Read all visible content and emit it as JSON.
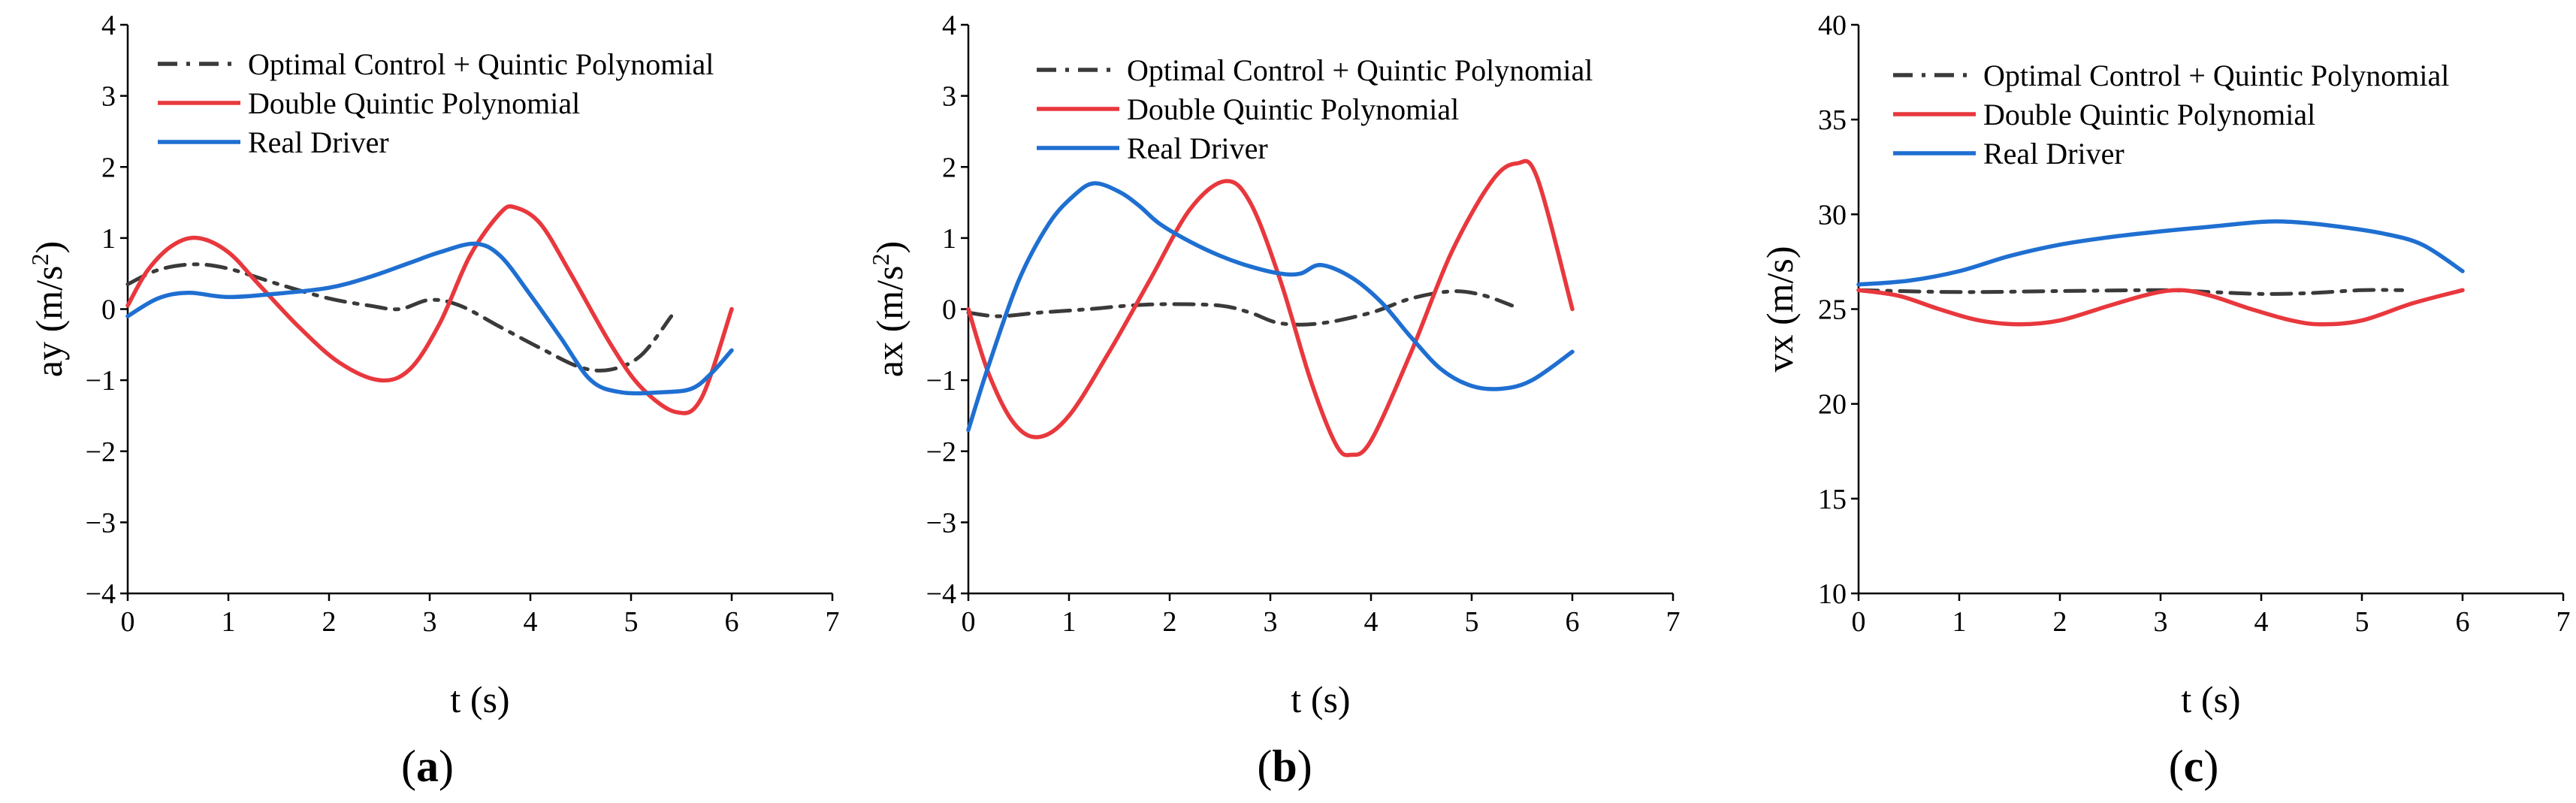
{
  "colors": {
    "optimal": "#3a3a3a",
    "double": "#e8383d",
    "real": "#1f6fd1"
  },
  "chart_data": [
    {
      "type": "line",
      "panel_label": "a",
      "xlabel": "t (s)",
      "ylabel": {
        "base": "ay (m/s",
        "sup": "2",
        "end": ")"
      },
      "xlim": [
        0,
        7
      ],
      "ylim": [
        -4,
        4
      ],
      "xticks": [
        "0",
        "1",
        "2",
        "3",
        "4",
        "5",
        "6",
        "7"
      ],
      "yticks": [
        "−4",
        "−3",
        "−2",
        "−1",
        "0",
        "1",
        "2",
        "3",
        "4"
      ],
      "legend_position": "top-left",
      "series": [
        {
          "name": "Optimal Control + Quintic Polynomial",
          "color_key": "optimal",
          "dash": "dashdot",
          "points": [
            [
              0,
              0.35
            ],
            [
              0.3,
              0.55
            ],
            [
              0.65,
              0.63
            ],
            [
              1.0,
              0.57
            ],
            [
              1.5,
              0.35
            ],
            [
              2.0,
              0.15
            ],
            [
              2.4,
              0.05
            ],
            [
              2.7,
              0.0
            ],
            [
              3.0,
              0.13
            ],
            [
              3.3,
              0.05
            ],
            [
              3.7,
              -0.25
            ],
            [
              4.1,
              -0.55
            ],
            [
              4.5,
              -0.82
            ],
            [
              4.8,
              -0.85
            ],
            [
              5.1,
              -0.65
            ],
            [
              5.4,
              -0.1
            ]
          ]
        },
        {
          "name": "Double Quintic Polynomial",
          "color_key": "double",
          "dash": "solid",
          "points": [
            [
              0,
              0.05
            ],
            [
              0.2,
              0.55
            ],
            [
              0.45,
              0.9
            ],
            [
              0.7,
              1.0
            ],
            [
              1.0,
              0.8
            ],
            [
              1.3,
              0.35
            ],
            [
              1.7,
              -0.25
            ],
            [
              2.1,
              -0.75
            ],
            [
              2.5,
              -1.0
            ],
            [
              2.8,
              -0.85
            ],
            [
              3.1,
              -0.2
            ],
            [
              3.4,
              0.75
            ],
            [
              3.7,
              1.35
            ],
            [
              3.85,
              1.43
            ],
            [
              4.1,
              1.2
            ],
            [
              4.4,
              0.5
            ],
            [
              4.8,
              -0.5
            ],
            [
              5.1,
              -1.1
            ],
            [
              5.45,
              -1.45
            ],
            [
              5.7,
              -1.25
            ],
            [
              6.0,
              0.0
            ]
          ]
        },
        {
          "name": "Real Driver",
          "color_key": "real",
          "dash": "solid",
          "points": [
            [
              0,
              -0.1
            ],
            [
              0.3,
              0.15
            ],
            [
              0.6,
              0.23
            ],
            [
              1.0,
              0.17
            ],
            [
              1.5,
              0.22
            ],
            [
              2.0,
              0.3
            ],
            [
              2.4,
              0.45
            ],
            [
              2.8,
              0.65
            ],
            [
              3.1,
              0.8
            ],
            [
              3.45,
              0.92
            ],
            [
              3.7,
              0.75
            ],
            [
              4.0,
              0.2
            ],
            [
              4.3,
              -0.4
            ],
            [
              4.6,
              -1.0
            ],
            [
              4.9,
              -1.17
            ],
            [
              5.3,
              -1.17
            ],
            [
              5.6,
              -1.12
            ],
            [
              5.8,
              -0.9
            ],
            [
              6.0,
              -0.58
            ]
          ]
        }
      ]
    },
    {
      "type": "line",
      "panel_label": "b",
      "xlabel": "t (s)",
      "ylabel": {
        "base": "ax (m/s",
        "sup": "2",
        "end": ")"
      },
      "xlim": [
        0,
        7
      ],
      "ylim": [
        -4,
        4
      ],
      "xticks": [
        "0",
        "1",
        "2",
        "3",
        "4",
        "5",
        "6",
        "7"
      ],
      "yticks": [
        "−4",
        "−3",
        "−2",
        "−1",
        "0",
        "1",
        "2",
        "3",
        "4"
      ],
      "legend_position": "top-center",
      "series": [
        {
          "name": "Optimal Control + Quintic Polynomial",
          "color_key": "optimal",
          "dash": "dashdot",
          "points": [
            [
              0,
              -0.05
            ],
            [
              0.3,
              -0.1
            ],
            [
              0.7,
              -0.05
            ],
            [
              1.2,
              0.0
            ],
            [
              1.6,
              0.05
            ],
            [
              2.0,
              0.07
            ],
            [
              2.5,
              0.05
            ],
            [
              2.8,
              -0.05
            ],
            [
              3.1,
              -0.2
            ],
            [
              3.5,
              -0.2
            ],
            [
              4.0,
              -0.05
            ],
            [
              4.4,
              0.15
            ],
            [
              4.8,
              0.25
            ],
            [
              5.1,
              0.2
            ],
            [
              5.4,
              0.05
            ]
          ]
        },
        {
          "name": "Double Quintic Polynomial",
          "color_key": "double",
          "dash": "solid",
          "points": [
            [
              0,
              0.0
            ],
            [
              0.2,
              -0.9
            ],
            [
              0.45,
              -1.6
            ],
            [
              0.7,
              -1.8
            ],
            [
              1.0,
              -1.5
            ],
            [
              1.4,
              -0.6
            ],
            [
              1.8,
              0.4
            ],
            [
              2.2,
              1.4
            ],
            [
              2.55,
              1.8
            ],
            [
              2.8,
              1.5
            ],
            [
              3.1,
              0.4
            ],
            [
              3.4,
              -1.0
            ],
            [
              3.65,
              -1.9
            ],
            [
              3.8,
              -2.05
            ],
            [
              4.0,
              -1.85
            ],
            [
              4.4,
              -0.6
            ],
            [
              4.8,
              0.8
            ],
            [
              5.2,
              1.8
            ],
            [
              5.45,
              2.05
            ],
            [
              5.65,
              1.85
            ],
            [
              6.0,
              0.0
            ]
          ]
        },
        {
          "name": "Real Driver",
          "color_key": "real",
          "dash": "solid",
          "points": [
            [
              0,
              -1.7
            ],
            [
              0.2,
              -0.8
            ],
            [
              0.5,
              0.4
            ],
            [
              0.8,
              1.2
            ],
            [
              1.05,
              1.6
            ],
            [
              1.25,
              1.77
            ],
            [
              1.5,
              1.65
            ],
            [
              1.7,
              1.45
            ],
            [
              1.9,
              1.2
            ],
            [
              2.2,
              0.95
            ],
            [
              2.5,
              0.75
            ],
            [
              2.8,
              0.6
            ],
            [
              3.1,
              0.5
            ],
            [
              3.3,
              0.5
            ],
            [
              3.5,
              0.62
            ],
            [
              3.8,
              0.45
            ],
            [
              4.1,
              0.1
            ],
            [
              4.4,
              -0.4
            ],
            [
              4.7,
              -0.85
            ],
            [
              5.0,
              -1.08
            ],
            [
              5.3,
              -1.12
            ],
            [
              5.6,
              -1.0
            ],
            [
              6.0,
              -0.6
            ]
          ]
        }
      ]
    },
    {
      "type": "line",
      "panel_label": "c",
      "xlabel": "t (s)",
      "ylabel": {
        "base": "vx (m/s)",
        "sup": "",
        "end": ""
      },
      "xlim": [
        0,
        7
      ],
      "ylim": [
        10,
        40
      ],
      "xticks": [
        "0",
        "1",
        "2",
        "3",
        "4",
        "5",
        "6",
        "7"
      ],
      "yticks": [
        "10",
        "15",
        "20",
        "25",
        "30",
        "35",
        "40"
      ],
      "legend_position": "top-left",
      "series": [
        {
          "name": "Optimal Control + Quintic Polynomial",
          "color_key": "optimal",
          "dash": "dashdot",
          "points": [
            [
              0,
              26.0
            ],
            [
              1.0,
              25.9
            ],
            [
              2.0,
              25.95
            ],
            [
              3.0,
              26.0
            ],
            [
              3.5,
              25.9
            ],
            [
              4.0,
              25.8
            ],
            [
              4.5,
              25.85
            ],
            [
              5.0,
              26.0
            ],
            [
              5.4,
              26.0
            ]
          ]
        },
        {
          "name": "Double Quintic Polynomial",
          "color_key": "double",
          "dash": "solid",
          "points": [
            [
              0,
              26.0
            ],
            [
              0.4,
              25.7
            ],
            [
              0.8,
              25.0
            ],
            [
              1.2,
              24.4
            ],
            [
              1.6,
              24.2
            ],
            [
              2.0,
              24.4
            ],
            [
              2.5,
              25.2
            ],
            [
              2.9,
              25.8
            ],
            [
              3.2,
              26.0
            ],
            [
              3.5,
              25.7
            ],
            [
              3.9,
              25.0
            ],
            [
              4.3,
              24.4
            ],
            [
              4.6,
              24.2
            ],
            [
              5.0,
              24.4
            ],
            [
              5.5,
              25.3
            ],
            [
              6.0,
              26.0
            ]
          ]
        },
        {
          "name": "Real Driver",
          "color_key": "real",
          "dash": "solid",
          "points": [
            [
              0,
              26.3
            ],
            [
              0.5,
              26.5
            ],
            [
              1.0,
              27.0
            ],
            [
              1.5,
              27.8
            ],
            [
              2.0,
              28.4
            ],
            [
              2.5,
              28.8
            ],
            [
              3.0,
              29.1
            ],
            [
              3.5,
              29.35
            ],
            [
              4.0,
              29.6
            ],
            [
              4.3,
              29.6
            ],
            [
              4.7,
              29.4
            ],
            [
              5.2,
              29.0
            ],
            [
              5.6,
              28.4
            ],
            [
              6.0,
              27.0
            ]
          ]
        }
      ]
    }
  ]
}
